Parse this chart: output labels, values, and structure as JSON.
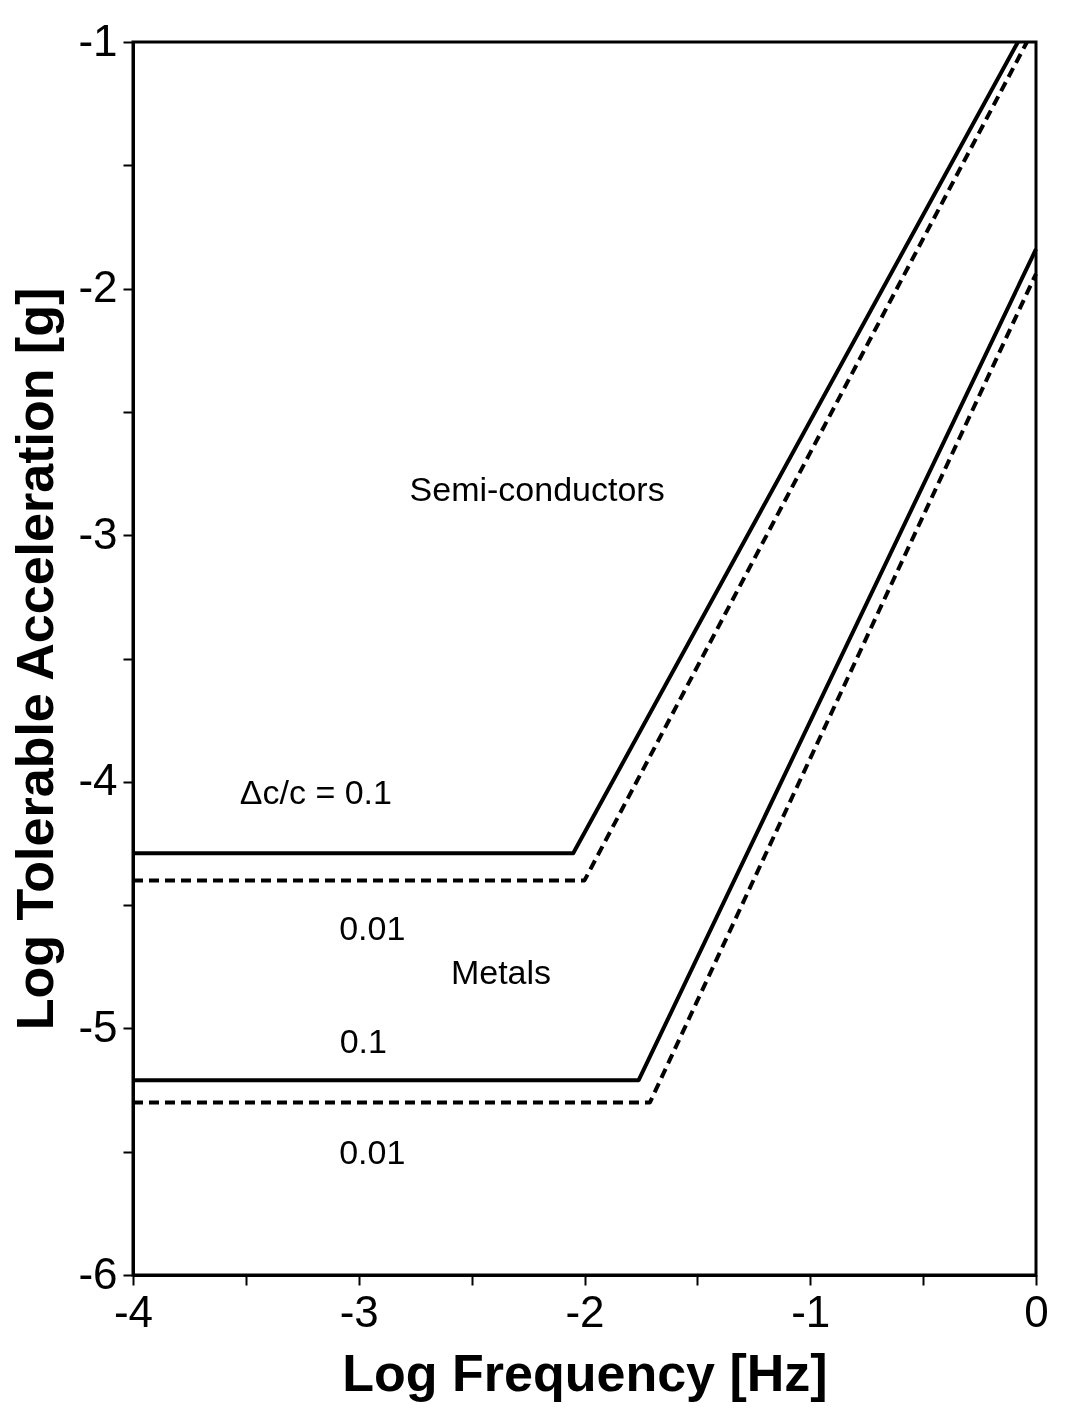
{
  "chart_data": {
    "type": "line",
    "xlabel": "Log Frequency [Hz]",
    "ylabel": "Log Tolerable Acceleration [g]",
    "xlim": [
      -4,
      0
    ],
    "ylim": [
      -6,
      -1
    ],
    "xticks": [
      -4,
      {
        "value": -3.5,
        "label": null
      },
      -3,
      {
        "value": -2.5,
        "label": null
      },
      -2,
      {
        "value": -1.5,
        "label": null
      },
      -1,
      {
        "value": -0.5,
        "label": null
      },
      0
    ],
    "yticks": [
      -6,
      {
        "value": -5.5,
        "label": null
      },
      -5,
      {
        "value": -4.5,
        "label": null
      },
      -4,
      {
        "value": -3.5,
        "label": null
      },
      -3,
      {
        "value": -2.5,
        "label": null
      },
      -2,
      {
        "value": -1.5,
        "label": null
      },
      -1
    ],
    "grid": false,
    "series": [
      {
        "color": "#000000",
        "line_style": "solid",
        "x": [
          -4,
          -2.05,
          -0.08
        ],
        "values": [
          -4.29,
          -4.29,
          -1
        ]
      },
      {
        "color": "#000000",
        "line_style": "dashed",
        "x": [
          -4,
          -2.0,
          -0.04
        ],
        "values": [
          -4.4,
          -4.4,
          -1
        ]
      },
      {
        "color": "#000000",
        "line_style": "solid",
        "x": [
          -4,
          -1.76,
          0
        ],
        "values": [
          -5.21,
          -5.21,
          -1.84
        ]
      },
      {
        "color": "#000000",
        "line_style": "dashed",
        "x": [
          -4,
          -1.71,
          0
        ],
        "values": [
          -5.3,
          -5.3,
          -1.94
        ]
      }
    ],
    "annotations": [
      "Semi-conductors",
      "Metals",
      "Δc/c = 0.1",
      "0.01",
      "0.1",
      "0.01"
    ]
  }
}
